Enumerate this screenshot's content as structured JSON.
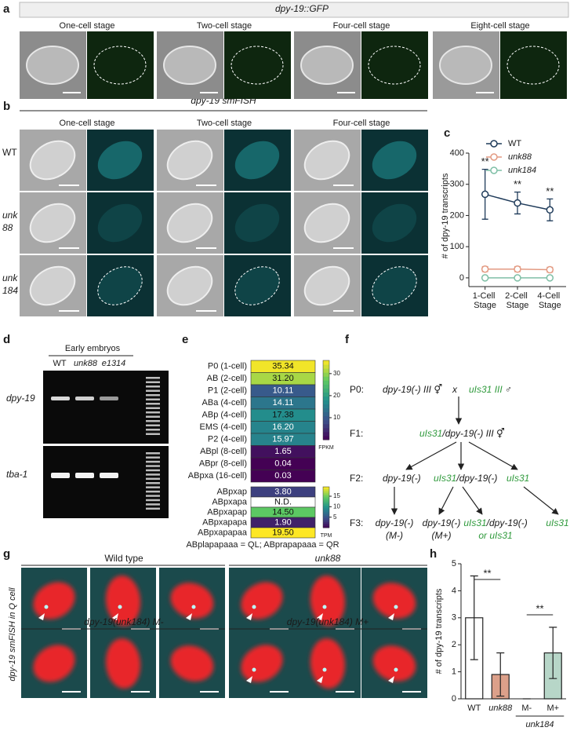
{
  "chart_data": [
    {
      "type": "line",
      "panel": "c",
      "categories": [
        "1-Cell Stage",
        "2-Cell Stage",
        "4-Cell Stage"
      ],
      "ylabel": "# of dpy-19 transcripts",
      "ylim": [
        -28,
        400
      ],
      "yticks": [
        0,
        100,
        200,
        300,
        400
      ],
      "series": [
        {
          "name": "WT",
          "color": "#1f3b5a",
          "values": [
            268,
            240,
            218
          ],
          "errors": [
            80,
            35,
            35
          ],
          "annotations": [
            "**",
            "**",
            "**"
          ]
        },
        {
          "name": "unk88",
          "color": "#e39a82",
          "values": [
            28,
            28,
            26
          ],
          "errors": [
            8,
            8,
            8
          ]
        },
        {
          "name": "unk184",
          "color": "#7fbfa6",
          "values": [
            0,
            0,
            0
          ],
          "errors": [
            0,
            0,
            0
          ]
        }
      ],
      "legend": "top"
    },
    {
      "type": "bar",
      "panel": "h",
      "categories": [
        "WT",
        "unk88",
        "M-",
        "M+"
      ],
      "group_label": "unk184",
      "values": [
        3.0,
        0.9,
        0,
        1.7
      ],
      "errors": [
        1.55,
        0.8,
        0,
        0.95
      ],
      "colors": [
        "#ffffff",
        "#dca08a",
        "#ffffff",
        "#b7d6c8"
      ],
      "ylabel": "# of dpy-19 transcripts",
      "ylim": [
        0,
        5
      ],
      "yticks": [
        0,
        1,
        2,
        3,
        4,
        5
      ],
      "annotations": [
        "**",
        "**"
      ]
    }
  ],
  "panels": {
    "a": {
      "label": "a",
      "title": "dpy-19::GFP",
      "stages": [
        "One-cell stage",
        "Two-cell stage",
        "Four-cell stage",
        "Eight-cell stage"
      ]
    },
    "b": {
      "label": "b",
      "title": "dpy-19 smFISH",
      "stages": [
        "One-cell stage",
        "Two-cell stage",
        "Four-cell stage"
      ],
      "rows": [
        "WT",
        "unk 88",
        "unk 184"
      ]
    },
    "c": {
      "label": "c"
    },
    "d": {
      "label": "d",
      "header": "Early embryos",
      "lanes": [
        "WT",
        "unk88",
        "e1314"
      ],
      "genes": [
        "dpy-19",
        "tba-1"
      ]
    },
    "e": {
      "label": "e",
      "footer": "ABplapapaaa = QL; ABprapapaaa = QR",
      "tables": [
        {
          "rows": [
            [
              "P0 (1-cell)",
              "35.34"
            ],
            [
              "AB (2-cell)",
              "31.20"
            ],
            [
              "P1 (2-cell)",
              "10.11"
            ],
            [
              "ABa (4-cell)",
              "14.11"
            ],
            [
              "ABp (4-cell)",
              "17.38"
            ],
            [
              "EMS (4-cell)",
              "16.20"
            ],
            [
              "P2 (4-cell)",
              "15.97"
            ],
            [
              "ABpl (8-cell)",
              "1.65"
            ],
            [
              "ABpr (8-cell)",
              "0.04"
            ],
            [
              "ABpxa (16-cell)",
              "0.03"
            ]
          ],
          "colorbar": {
            "label": "FPKM",
            "lim": [
              0,
              36
            ],
            "ticks": [
              10,
              20,
              30
            ]
          }
        },
        {
          "rows": [
            [
              "ABpxap",
              "3.80"
            ],
            [
              "ABpxapa",
              "N.D."
            ],
            [
              "ABpxapap",
              "14.50"
            ],
            [
              "ABpxapapa",
              "1.90"
            ],
            [
              "ABpxapapaa",
              "19.50"
            ]
          ],
          "colorbar": {
            "label": "TPM",
            "lim": [
              0,
              19.5
            ],
            "ticks": [
              5,
              10,
              15
            ]
          }
        }
      ]
    },
    "f": {
      "label": "f",
      "generations": [
        "P0:",
        "F1:",
        "F2:",
        "F3:"
      ],
      "nodes": [
        [
          {
            "text": "dpy-19(-) III ⚥",
            "color": "#1a1a1a"
          }
        ],
        [
          {
            "text": "x",
            "color": "#1a1a1a"
          }
        ],
        [
          {
            "text": "uIs31 III",
            "color": "#2f9a3c"
          },
          {
            "text": " ♂",
            "color": "#1a1a1a"
          }
        ],
        [
          {
            "text": "uIs31",
            "color": "#2f9a3c"
          },
          {
            "text": "/dpy-19(-) III ⚥",
            "color": "#1a1a1a"
          }
        ],
        [
          {
            "text": "dpy-19(-)",
            "color": "#1a1a1a"
          }
        ],
        [
          {
            "text": "uIs31",
            "color": "#2f9a3c"
          },
          {
            "text": "/dpy-19(-)",
            "color": "#1a1a1a"
          }
        ],
        [
          {
            "text": "uIs31",
            "color": "#2f9a3c"
          }
        ],
        [
          {
            "text": "dpy-19(-)",
            "color": "#1a1a1a"
          }
        ],
        [
          {
            "text": "(M-)",
            "color": "#1a1a1a"
          }
        ],
        [
          {
            "text": "dpy-19(-)",
            "color": "#1a1a1a"
          }
        ],
        [
          {
            "text": "(M+)",
            "color": "#1a1a1a"
          }
        ],
        [
          {
            "text": "uIs31",
            "color": "#2f9a3c"
          },
          {
            "text": "/dpy-19(-)",
            "color": "#1a1a1a"
          }
        ],
        [
          {
            "text": "or ",
            "color": "#2f9a3c"
          },
          {
            "text": "uIs31",
            "color": "#2f9a3c"
          }
        ],
        [
          {
            "text": "uIs31",
            "color": "#2f9a3c"
          }
        ]
      ]
    },
    "g": {
      "label": "g",
      "ylabel": "dpy-19 smFISH in Q cell",
      "groups": [
        "Wild type",
        "unk88",
        "dpy-19(unk184) M-",
        "dpy-19(unk184) M+"
      ]
    },
    "h": {
      "label": "h"
    }
  }
}
